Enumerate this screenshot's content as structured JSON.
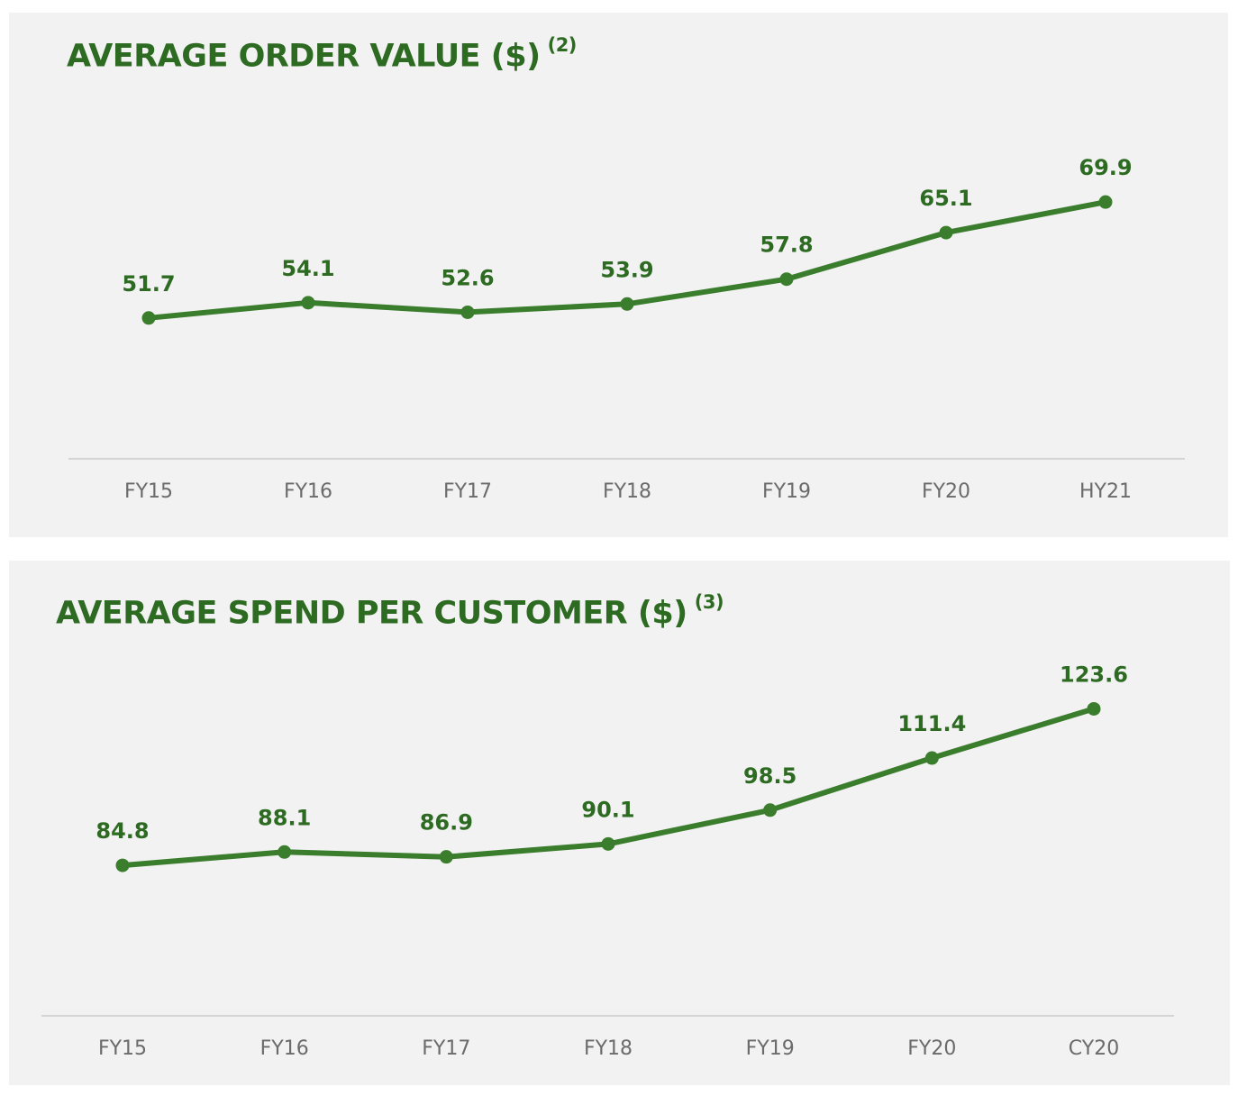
{
  "colors": {
    "title": "#2e6b22",
    "line": "#3a7d2c",
    "panel_bg": "#f2f2f2",
    "axis": "#d4d4d4",
    "tick": "#6b6b6b"
  },
  "chart_data": [
    {
      "type": "line",
      "title": "AVERAGE ORDER VALUE ($)",
      "footnote": "(2)",
      "categories": [
        "FY15",
        "FY16",
        "FY17",
        "FY18",
        "FY19",
        "FY20",
        "HY21"
      ],
      "values": [
        51.7,
        54.1,
        52.6,
        53.9,
        57.8,
        65.1,
        69.9
      ],
      "value_labels": [
        "51.7",
        "54.1",
        "52.6",
        "53.9",
        "57.8",
        "65.1",
        "69.9"
      ],
      "xlabel": "",
      "ylabel": "",
      "ylim": [
        29.6,
        77
      ],
      "grid": false,
      "legend": "none"
    },
    {
      "type": "line",
      "title": "AVERAGE SPEND PER CUSTOMER ($)",
      "footnote": "(3)",
      "categories": [
        "FY15",
        "FY16",
        "FY17",
        "FY18",
        "FY19",
        "FY20",
        "CY20"
      ],
      "values": [
        84.8,
        88.1,
        86.9,
        90.1,
        98.5,
        111.4,
        123.6
      ],
      "value_labels": [
        "84.8",
        "88.1",
        "86.9",
        "90.1",
        "98.5",
        "111.4",
        "123.6"
      ],
      "xlabel": "",
      "ylabel": "",
      "ylim": [
        47.5,
        138
      ],
      "grid": false,
      "legend": "none"
    }
  ]
}
